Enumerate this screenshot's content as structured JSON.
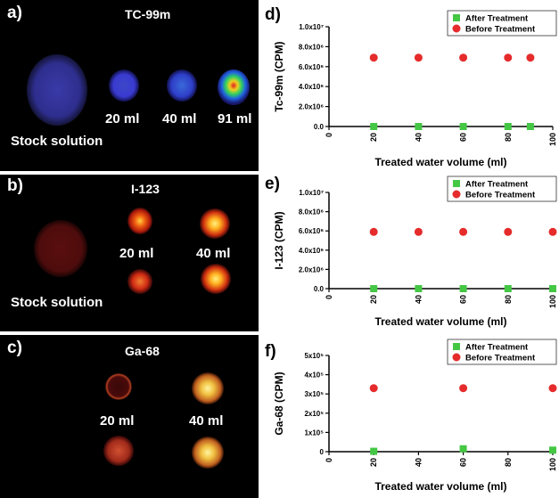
{
  "panels": {
    "a": {
      "label": "a)",
      "title": "TC-99m",
      "stock": "Stock solution",
      "vols": [
        "20 ml",
        "40 ml",
        "91 ml"
      ]
    },
    "b": {
      "label": "b)",
      "title": "I-123",
      "stock": "Stock solution",
      "vols": [
        "20 ml",
        "40 ml"
      ]
    },
    "c": {
      "label": "c)",
      "title": "Ga-68",
      "vols": [
        "20 ml",
        "40 ml"
      ]
    }
  },
  "chart_data": [
    {
      "type": "scatter",
      "panel_label": "d)",
      "xlabel": "Treated water volume (ml)",
      "ylabel": "Tc-99m  (CPM)",
      "xlim": [
        0,
        100
      ],
      "xticks": [
        "0",
        "20",
        "40",
        "60",
        "80",
        "100"
      ],
      "ylim": [
        0,
        10000000
      ],
      "yticks": [
        "0.0",
        "2.0x10⁶",
        "4.0x10⁶",
        "6.0x10⁶",
        "8.0x10⁶",
        "1.0x10⁷"
      ],
      "legend_position": "top-right",
      "series": [
        {
          "name": "After Treatment",
          "marker": "square",
          "color": "#44c744",
          "x": [
            20,
            40,
            60,
            80,
            90
          ],
          "y": [
            0,
            0,
            0,
            0,
            0
          ]
        },
        {
          "name": "Before Treatment",
          "marker": "circle",
          "color": "#e52b2b",
          "x": [
            20,
            40,
            60,
            80,
            90
          ],
          "y": [
            6900000,
            6900000,
            6900000,
            6900000,
            6900000
          ]
        }
      ]
    },
    {
      "type": "scatter",
      "panel_label": "e)",
      "xlabel": "Treated water volume (ml)",
      "ylabel": "I-123  (CPM)",
      "xlim": [
        0,
        100
      ],
      "xticks": [
        "0",
        "20",
        "40",
        "60",
        "80",
        "100"
      ],
      "ylim": [
        0,
        10000000
      ],
      "yticks": [
        "0.0",
        "2.0x10⁶",
        "4.0x10⁶",
        "6.0x10⁶",
        "8.0x10⁶",
        "1.0x10⁷"
      ],
      "legend_position": "top-right",
      "series": [
        {
          "name": "After Treatment",
          "marker": "square",
          "color": "#44c744",
          "x": [
            20,
            40,
            60,
            80,
            100
          ],
          "y": [
            0,
            0,
            0,
            0,
            0
          ]
        },
        {
          "name": "Before Treatment",
          "marker": "circle",
          "color": "#e52b2b",
          "x": [
            20,
            40,
            60,
            80,
            100
          ],
          "y": [
            5900000,
            5900000,
            5900000,
            5900000,
            5900000
          ]
        }
      ]
    },
    {
      "type": "scatter",
      "panel_label": "f)",
      "xlabel": "Treated water volume (ml)",
      "ylabel": "Ga-68  (CPM)",
      "xlim": [
        0,
        100
      ],
      "xticks": [
        "0",
        "20",
        "40",
        "60",
        "80",
        "100"
      ],
      "ylim": [
        0,
        500000
      ],
      "yticks": [
        "0",
        "1x10⁵",
        "2x10⁵",
        "3x10⁵",
        "4x10⁵",
        "5x10⁵"
      ],
      "legend_position": "top-right",
      "series": [
        {
          "name": "After Treatment",
          "marker": "square",
          "color": "#44c744",
          "x": [
            20,
            60,
            100
          ],
          "y": [
            2000,
            15000,
            8000
          ]
        },
        {
          "name": "Before Treatment",
          "marker": "circle",
          "color": "#e52b2b",
          "x": [
            20,
            60,
            100
          ],
          "y": [
            330000,
            330000,
            330000
          ]
        }
      ]
    }
  ]
}
